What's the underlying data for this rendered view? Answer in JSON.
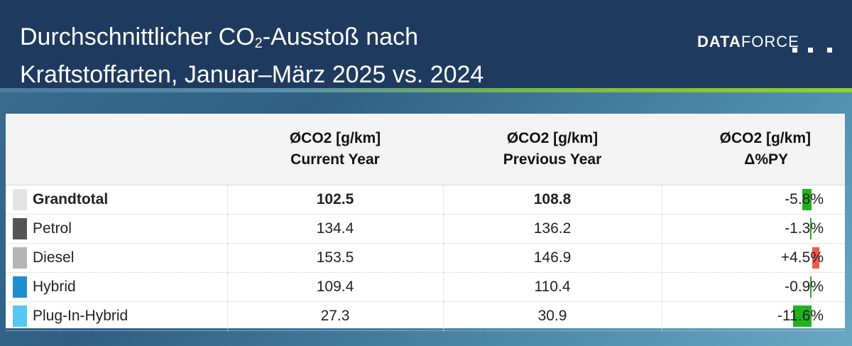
{
  "header": {
    "title_line1_pre": "Durchschnittlicher CO",
    "title_sub": "2",
    "title_line1_post": "-Ausstoß nach",
    "title_line2": "Kraftstoffarten, Januar–März 2025 vs. 2024",
    "logo_bold": "DATA",
    "logo_regular": "FORCE"
  },
  "table": {
    "columns": [
      {
        "line1": "ØCO2 [g/km]",
        "line2": "Current Year"
      },
      {
        "line1": "ØCO2 [g/km]",
        "line2": "Previous Year"
      },
      {
        "line1": "ØCO2 [g/km]",
        "line2": "Δ%PY"
      }
    ]
  },
  "chart_data": {
    "type": "table",
    "columns": [
      "ØCO2 [g/km] Current Year",
      "ØCO2 [g/km] Previous Year",
      "ØCO2 [g/km] Δ%PY"
    ],
    "rows": [
      {
        "label": "Grandtotal",
        "current": "102.5",
        "previous": "108.8",
        "delta": "-5.8%",
        "delta_value": -5.8,
        "swatch": "#e3e3e3",
        "bold": true
      },
      {
        "label": "Petrol",
        "current": "134.4",
        "previous": "136.2",
        "delta": "-1.3%",
        "delta_value": -1.3,
        "swatch": "#555555"
      },
      {
        "label": "Diesel",
        "current": "153.5",
        "previous": "146.9",
        "delta": "+4.5%",
        "delta_value": 4.5,
        "swatch": "#b4b4b4"
      },
      {
        "label": "Hybrid",
        "current": "109.4",
        "previous": "110.4",
        "delta": "-0.9%",
        "delta_value": -0.9,
        "swatch": "#1c8fcf"
      },
      {
        "label": "Plug-In-Hybrid",
        "current": "27.3",
        "previous": "30.9",
        "delta": "-11.6%",
        "delta_value": -11.6,
        "swatch": "#55c8f2"
      }
    ],
    "delta_colors": {
      "negative": "#21b21f",
      "positive": "#f05a4b"
    }
  }
}
